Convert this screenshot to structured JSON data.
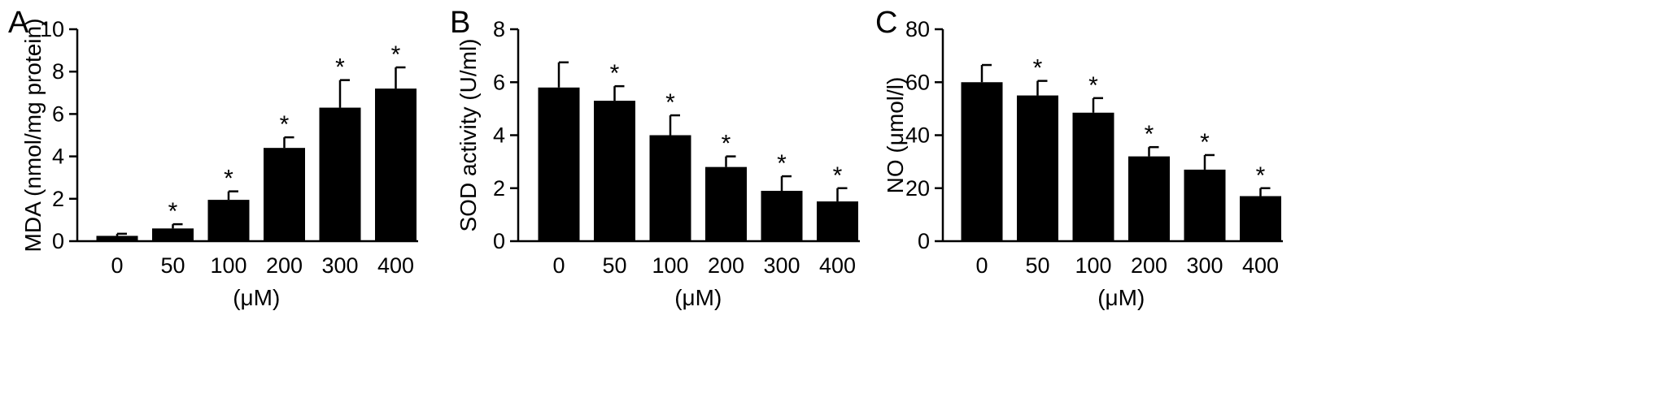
{
  "figure": {
    "panels": [
      "A",
      "B",
      "C"
    ]
  },
  "chart_data": [
    {
      "type": "bar",
      "panel": "A",
      "title": "",
      "categories": [
        "0",
        "50",
        "100",
        "200",
        "300",
        "400"
      ],
      "values": [
        0.25,
        0.6,
        1.95,
        4.4,
        6.3,
        7.2
      ],
      "errors": [
        0.1,
        0.2,
        0.4,
        0.5,
        1.3,
        1.0
      ],
      "significance": [
        "",
        "*",
        "*",
        "*",
        "*",
        "*"
      ],
      "xlabel": "(μM)",
      "ylabel": "MDA (nmol/mg protein)",
      "ylim": [
        0,
        10
      ],
      "yticks": [
        0,
        2,
        4,
        6,
        8,
        10
      ],
      "grid": false,
      "bar_color": "#000000"
    },
    {
      "type": "bar",
      "panel": "B",
      "title": "",
      "categories": [
        "0",
        "50",
        "100",
        "200",
        "300",
        "400"
      ],
      "values": [
        5.8,
        5.3,
        4.0,
        2.8,
        1.9,
        1.5
      ],
      "errors": [
        0.95,
        0.55,
        0.75,
        0.4,
        0.55,
        0.5
      ],
      "significance": [
        "",
        "*",
        "*",
        "*",
        "*",
        "*"
      ],
      "xlabel": "(μM)",
      "ylabel": "SOD activity (U/ml)",
      "ylim": [
        0,
        8
      ],
      "yticks": [
        0,
        2,
        4,
        6,
        8
      ],
      "grid": false,
      "bar_color": "#000000"
    },
    {
      "type": "bar",
      "panel": "C",
      "title": "",
      "categories": [
        "0",
        "50",
        "100",
        "200",
        "300",
        "400"
      ],
      "values": [
        60,
        55,
        48.5,
        32,
        27,
        17
      ],
      "errors": [
        6.5,
        5.5,
        5.5,
        3.5,
        5.5,
        3
      ],
      "significance": [
        "",
        "*",
        "*",
        "*",
        "*",
        "*"
      ],
      "xlabel": "(μM)",
      "ylabel": "NO (μmol/l)",
      "ylim": [
        0,
        80
      ],
      "yticks": [
        0,
        20,
        40,
        60,
        80
      ],
      "grid": false,
      "bar_color": "#000000"
    }
  ]
}
